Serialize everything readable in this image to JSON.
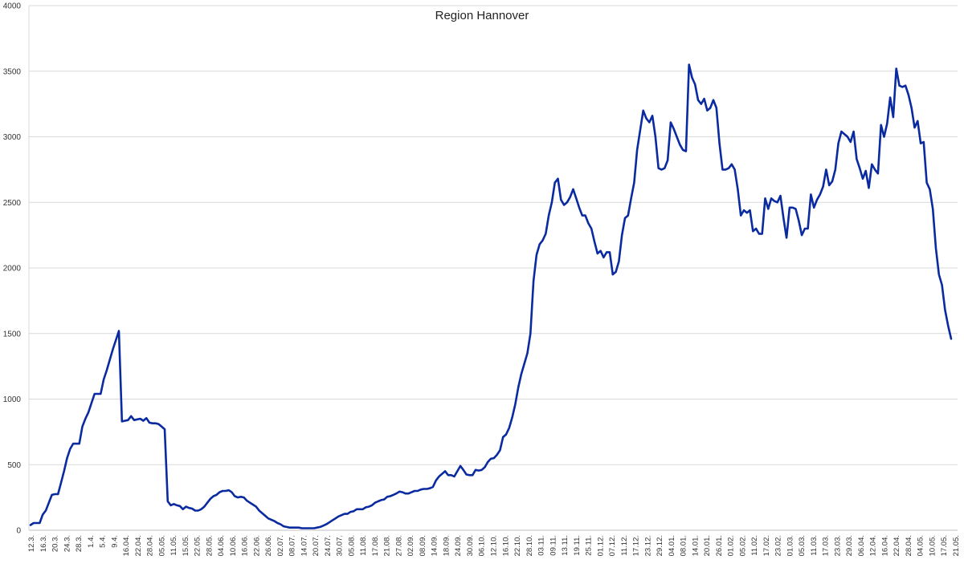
{
  "chart_data": {
    "type": "line",
    "title": "Region Hannover",
    "xlabel": "",
    "ylabel": "",
    "ylim": [
      0,
      4000
    ],
    "yticks": [
      0,
      500,
      1000,
      1500,
      2000,
      2500,
      3000,
      3500,
      4000
    ],
    "grid": true,
    "legend": "none",
    "line_color": "#0a2aa0",
    "x_tick_labels": [
      "12.3.",
      "16.3.",
      "20.3.",
      "24.3.",
      "28.3.",
      "1.4.",
      "5.4.",
      "9.4.",
      "16.04.",
      "22.04.",
      "28.04.",
      "05.05.",
      "11.05.",
      "15.05.",
      "22.05.",
      "28.05.",
      "04.06.",
      "10.06.",
      "16.06.",
      "22.06.",
      "26.06.",
      "02.07.",
      "08.07.",
      "14.07.",
      "20.07.",
      "24.07.",
      "30.07.",
      "05.08.",
      "11.08.",
      "17.08.",
      "21.08.",
      "27.08.",
      "02.09.",
      "08.09.",
      "14.09.",
      "18.09.",
      "24.09.",
      "30.09.",
      "06.10.",
      "12.10.",
      "16.10.",
      "22.10.",
      "28.10.",
      "03.11.",
      "09.11.",
      "13.11.",
      "19.11.",
      "25.11.",
      "01.12.",
      "07.12.",
      "11.12.",
      "17.12.",
      "23.12.",
      "29.12.",
      "04.01.",
      "08.01.",
      "14.01.",
      "20.01.",
      "26.01.",
      "01.02.",
      "05.02.",
      "11.02.",
      "17.02.",
      "23.02.",
      "01.03.",
      "05.03.",
      "11.03.",
      "17.03.",
      "23.03.",
      "29.03.",
      "06.04.",
      "12.04.",
      "16.04.",
      "22.04.",
      "28.04.",
      "04.05.",
      "10.05.",
      "17.05.",
      "21.05."
    ],
    "series": [
      {
        "values": [
          [
            0,
            40
          ],
          [
            1,
            55
          ],
          [
            2,
            55
          ],
          [
            3,
            55
          ],
          [
            4,
            120
          ],
          [
            5,
            150
          ],
          [
            6,
            210
          ],
          [
            7,
            270
          ],
          [
            8,
            275
          ],
          [
            9,
            275
          ],
          [
            10,
            360
          ],
          [
            11,
            450
          ],
          [
            12,
            550
          ],
          [
            13,
            620
          ],
          [
            14,
            660
          ],
          [
            15,
            660
          ],
          [
            16,
            660
          ],
          [
            17,
            790
          ],
          [
            18,
            850
          ],
          [
            19,
            900
          ],
          [
            20,
            970
          ],
          [
            21,
            1040
          ],
          [
            22,
            1040
          ],
          [
            23,
            1040
          ],
          [
            24,
            1150
          ],
          [
            25,
            1220
          ],
          [
            26,
            1300
          ],
          [
            27,
            1380
          ],
          [
            28,
            1450
          ],
          [
            29,
            1520
          ],
          [
            30,
            830
          ],
          [
            31,
            835
          ],
          [
            32,
            840
          ],
          [
            33,
            870
          ],
          [
            34,
            840
          ],
          [
            35,
            845
          ],
          [
            36,
            850
          ],
          [
            37,
            835
          ],
          [
            38,
            855
          ],
          [
            39,
            820
          ],
          [
            40,
            815
          ],
          [
            41,
            815
          ],
          [
            42,
            810
          ],
          [
            43,
            790
          ],
          [
            44,
            770
          ],
          [
            45,
            220
          ],
          [
            46,
            190
          ],
          [
            47,
            200
          ],
          [
            48,
            190
          ],
          [
            49,
            185
          ],
          [
            50,
            160
          ],
          [
            51,
            180
          ],
          [
            52,
            170
          ],
          [
            53,
            165
          ],
          [
            54,
            150
          ],
          [
            55,
            150
          ],
          [
            56,
            160
          ],
          [
            57,
            180
          ],
          [
            58,
            210
          ],
          [
            59,
            240
          ],
          [
            60,
            260
          ],
          [
            61,
            270
          ],
          [
            62,
            290
          ],
          [
            63,
            300
          ],
          [
            64,
            300
          ],
          [
            65,
            305
          ],
          [
            66,
            290
          ],
          [
            67,
            260
          ],
          [
            68,
            250
          ],
          [
            69,
            255
          ],
          [
            70,
            250
          ],
          [
            71,
            225
          ],
          [
            72,
            210
          ],
          [
            73,
            195
          ],
          [
            74,
            180
          ],
          [
            75,
            150
          ],
          [
            76,
            130
          ],
          [
            77,
            110
          ],
          [
            78,
            90
          ],
          [
            79,
            80
          ],
          [
            80,
            70
          ],
          [
            81,
            55
          ],
          [
            82,
            45
          ],
          [
            83,
            30
          ],
          [
            84,
            25
          ],
          [
            85,
            20
          ],
          [
            86,
            20
          ],
          [
            87,
            20
          ],
          [
            88,
            20
          ],
          [
            89,
            15
          ],
          [
            90,
            15
          ],
          [
            91,
            15
          ],
          [
            92,
            15
          ],
          [
            93,
            15
          ],
          [
            94,
            20
          ],
          [
            95,
            25
          ],
          [
            96,
            35
          ],
          [
            97,
            45
          ],
          [
            98,
            60
          ],
          [
            99,
            75
          ],
          [
            100,
            90
          ],
          [
            101,
            105
          ],
          [
            102,
            115
          ],
          [
            103,
            125
          ],
          [
            104,
            125
          ],
          [
            105,
            140
          ],
          [
            106,
            145
          ],
          [
            107,
            160
          ],
          [
            108,
            160
          ],
          [
            109,
            160
          ],
          [
            110,
            175
          ],
          [
            111,
            180
          ],
          [
            112,
            190
          ],
          [
            113,
            210
          ],
          [
            114,
            220
          ],
          [
            115,
            230
          ],
          [
            116,
            235
          ],
          [
            117,
            255
          ],
          [
            118,
            260
          ],
          [
            119,
            270
          ],
          [
            120,
            280
          ],
          [
            121,
            295
          ],
          [
            122,
            290
          ],
          [
            123,
            280
          ],
          [
            124,
            280
          ],
          [
            125,
            290
          ],
          [
            126,
            300
          ],
          [
            127,
            300
          ],
          [
            128,
            310
          ],
          [
            129,
            315
          ],
          [
            130,
            315
          ],
          [
            131,
            320
          ],
          [
            132,
            330
          ],
          [
            133,
            380
          ],
          [
            134,
            410
          ],
          [
            135,
            430
          ],
          [
            136,
            450
          ],
          [
            137,
            420
          ],
          [
            138,
            420
          ],
          [
            139,
            410
          ],
          [
            140,
            450
          ],
          [
            141,
            490
          ],
          [
            142,
            460
          ],
          [
            143,
            425
          ],
          [
            144,
            420
          ],
          [
            145,
            420
          ],
          [
            146,
            460
          ],
          [
            147,
            455
          ],
          [
            148,
            460
          ],
          [
            149,
            480
          ],
          [
            150,
            520
          ],
          [
            151,
            545
          ],
          [
            152,
            550
          ],
          [
            153,
            575
          ],
          [
            154,
            610
          ],
          [
            155,
            710
          ],
          [
            156,
            730
          ],
          [
            157,
            780
          ],
          [
            158,
            860
          ],
          [
            159,
            960
          ],
          [
            160,
            1090
          ],
          [
            161,
            1190
          ],
          [
            162,
            1270
          ],
          [
            163,
            1350
          ],
          [
            164,
            1500
          ],
          [
            165,
            1900
          ],
          [
            166,
            2100
          ],
          [
            167,
            2180
          ],
          [
            168,
            2210
          ],
          [
            169,
            2260
          ],
          [
            170,
            2400
          ],
          [
            171,
            2500
          ],
          [
            172,
            2650
          ],
          [
            173,
            2680
          ],
          [
            174,
            2520
          ],
          [
            175,
            2480
          ],
          [
            176,
            2500
          ],
          [
            177,
            2540
          ],
          [
            178,
            2600
          ],
          [
            179,
            2530
          ],
          [
            180,
            2460
          ],
          [
            181,
            2400
          ],
          [
            182,
            2400
          ],
          [
            183,
            2340
          ],
          [
            184,
            2300
          ],
          [
            185,
            2200
          ],
          [
            186,
            2110
          ],
          [
            187,
            2130
          ],
          [
            188,
            2080
          ],
          [
            189,
            2120
          ],
          [
            190,
            2120
          ],
          [
            191,
            1950
          ],
          [
            192,
            1970
          ],
          [
            193,
            2050
          ],
          [
            194,
            2250
          ],
          [
            195,
            2380
          ],
          [
            196,
            2400
          ],
          [
            197,
            2530
          ],
          [
            198,
            2650
          ],
          [
            199,
            2900
          ],
          [
            200,
            3050
          ],
          [
            201,
            3200
          ],
          [
            202,
            3140
          ],
          [
            203,
            3110
          ],
          [
            204,
            3160
          ],
          [
            205,
            3000
          ],
          [
            206,
            2760
          ],
          [
            207,
            2750
          ],
          [
            208,
            2760
          ],
          [
            209,
            2820
          ],
          [
            210,
            3110
          ],
          [
            211,
            3060
          ],
          [
            212,
            3000
          ],
          [
            213,
            2940
          ],
          [
            214,
            2900
          ],
          [
            215,
            2890
          ],
          [
            216,
            3550
          ],
          [
            217,
            3450
          ],
          [
            218,
            3400
          ],
          [
            219,
            3280
          ],
          [
            220,
            3250
          ],
          [
            221,
            3290
          ],
          [
            222,
            3200
          ],
          [
            223,
            3220
          ],
          [
            224,
            3280
          ],
          [
            225,
            3220
          ],
          [
            226,
            2950
          ],
          [
            227,
            2750
          ],
          [
            228,
            2750
          ],
          [
            229,
            2760
          ],
          [
            230,
            2790
          ],
          [
            231,
            2750
          ],
          [
            232,
            2600
          ],
          [
            233,
            2400
          ],
          [
            234,
            2440
          ],
          [
            235,
            2420
          ],
          [
            236,
            2440
          ],
          [
            237,
            2280
          ],
          [
            238,
            2300
          ],
          [
            239,
            2260
          ],
          [
            240,
            2260
          ],
          [
            241,
            2530
          ],
          [
            242,
            2450
          ],
          [
            243,
            2530
          ],
          [
            244,
            2510
          ],
          [
            245,
            2500
          ],
          [
            246,
            2550
          ],
          [
            247,
            2380
          ],
          [
            248,
            2230
          ],
          [
            249,
            2460
          ],
          [
            250,
            2460
          ],
          [
            251,
            2450
          ],
          [
            252,
            2360
          ],
          [
            253,
            2250
          ],
          [
            254,
            2300
          ],
          [
            255,
            2300
          ],
          [
            256,
            2560
          ],
          [
            257,
            2460
          ],
          [
            258,
            2520
          ],
          [
            259,
            2560
          ],
          [
            260,
            2620
          ],
          [
            261,
            2750
          ],
          [
            262,
            2630
          ],
          [
            263,
            2660
          ],
          [
            264,
            2750
          ],
          [
            265,
            2950
          ],
          [
            266,
            3040
          ],
          [
            267,
            3020
          ],
          [
            268,
            3000
          ],
          [
            269,
            2960
          ],
          [
            270,
            3040
          ],
          [
            271,
            2830
          ],
          [
            272,
            2760
          ],
          [
            273,
            2680
          ],
          [
            274,
            2740
          ],
          [
            275,
            2610
          ],
          [
            276,
            2790
          ],
          [
            277,
            2750
          ],
          [
            278,
            2720
          ],
          [
            279,
            3090
          ],
          [
            280,
            3000
          ],
          [
            281,
            3100
          ],
          [
            282,
            3300
          ],
          [
            283,
            3150
          ],
          [
            284,
            3520
          ],
          [
            285,
            3390
          ],
          [
            286,
            3380
          ],
          [
            287,
            3390
          ],
          [
            288,
            3320
          ],
          [
            289,
            3220
          ],
          [
            290,
            3070
          ],
          [
            291,
            3120
          ],
          [
            292,
            2950
          ],
          [
            293,
            2960
          ],
          [
            294,
            2650
          ],
          [
            295,
            2600
          ],
          [
            296,
            2450
          ],
          [
            297,
            2150
          ],
          [
            298,
            1950
          ],
          [
            299,
            1870
          ],
          [
            300,
            1680
          ],
          [
            301,
            1560
          ],
          [
            302,
            1460
          ]
        ]
      }
    ]
  }
}
